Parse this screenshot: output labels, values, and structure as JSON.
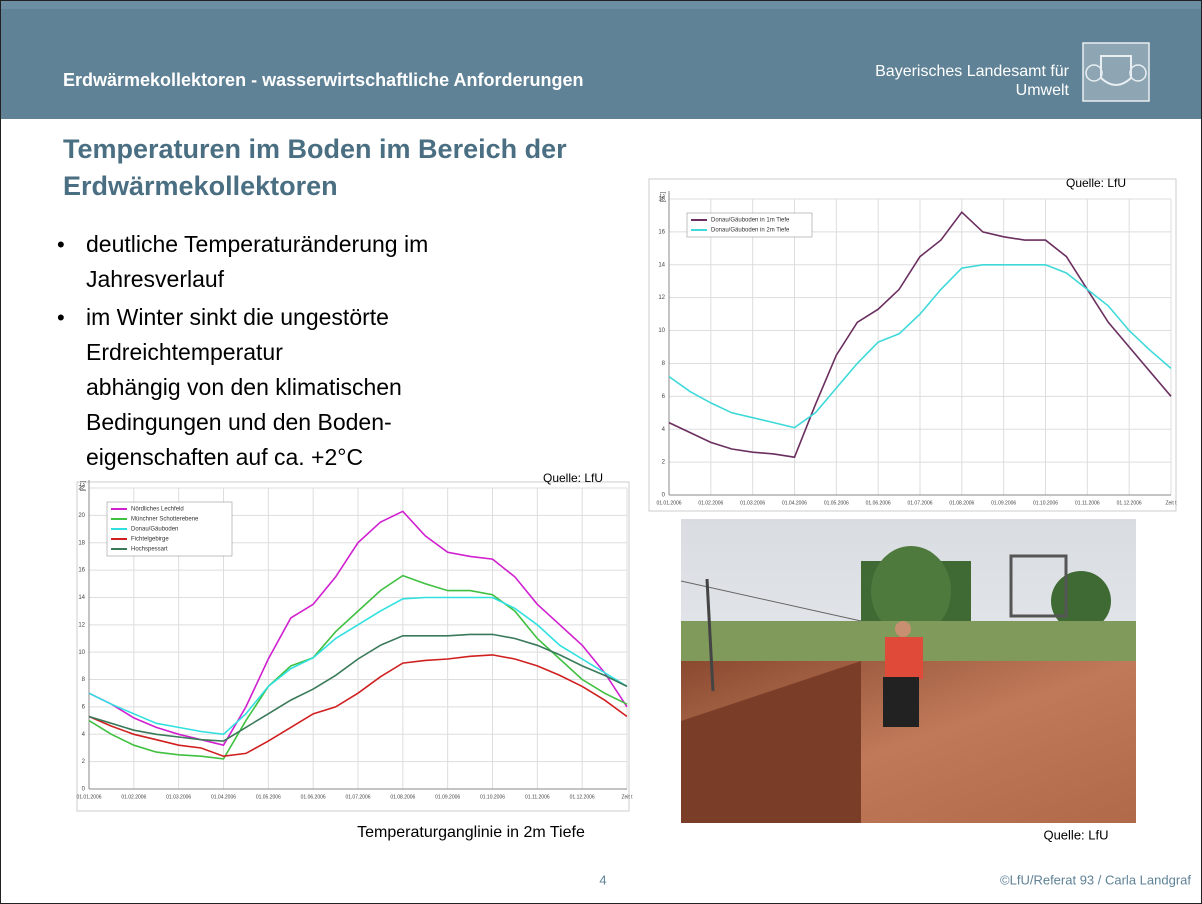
{
  "header": {
    "title": "Erdwärmekollektoren - wasserwirtschaftliche Anforderungen",
    "org_lines": [
      "Bayerisches Landesamt für",
      "Umwelt"
    ]
  },
  "slide_title": [
    "Temperaturen im Boden im Bereich der",
    "Erdwärmekollektoren"
  ],
  "bullets": [
    [
      "deutliche Temperaturänderung im",
      "Jahresverlauf"
    ],
    [
      "im Winter sinkt die ungestörte",
      "Erdreichtemperatur",
      "abhängig von den klimatischen",
      "Bedingungen und den Boden-",
      "eigenschaften auf ca. +2°C"
    ]
  ],
  "chart_data": [
    {
      "type": "line",
      "source": "Quelle: LfU",
      "ylabel": "[°C]",
      "categories": [
        "01.01.2006",
        null,
        "01.02.2006",
        null,
        "01.03.2006",
        null,
        "01.04.2006",
        null,
        "01.05.2006",
        null,
        "01.06.2006",
        null,
        "01.07.2006",
        null,
        "01.08.2006",
        null,
        "01.09.2006",
        null,
        "01.10.2006",
        null,
        "01.11.2006",
        null,
        "01.12.2006",
        null,
        "Zeit t"
      ],
      "ylim": [
        0,
        18
      ],
      "yticks": [
        0,
        2,
        4,
        6,
        8,
        10,
        12,
        14,
        16,
        18
      ],
      "grid": true,
      "legend": "upper left",
      "series": [
        {
          "name": "Donau/Gäuboden in 1m Tiefe",
          "color": "#6b2f5f",
          "values": [
            4.4,
            3.8,
            3.2,
            2.8,
            2.6,
            2.5,
            2.3,
            5.5,
            8.5,
            10.5,
            11.3,
            12.5,
            14.5,
            15.5,
            17.2,
            16,
            15.7,
            15.5,
            15.5,
            14.5,
            12.5,
            10.5,
            9,
            7.5,
            6
          ]
        },
        {
          "name": "Donau/Gäuboden in 2m Tiefe",
          "color": "#3fd9d9",
          "values": [
            7.2,
            6.3,
            5.6,
            5.0,
            4.7,
            4.4,
            4.1,
            5,
            6.5,
            8,
            9.3,
            9.8,
            11,
            12.5,
            13.8,
            14,
            14,
            14,
            14,
            13.5,
            12.5,
            11.5,
            10,
            8.8,
            7.7
          ]
        }
      ]
    },
    {
      "type": "line",
      "source": "Quelle: LfU",
      "ylabel": "[°C]",
      "caption": "Temperaturganglinie in 2m Tiefe",
      "categories": [
        "01.01.2006",
        null,
        "01.02.2006",
        null,
        "01.03.2006",
        null,
        "01.04.2006",
        null,
        "01.05.2006",
        null,
        "01.06.2006",
        null,
        "01.07.2006",
        null,
        "01.08.2006",
        null,
        "01.09.2006",
        null,
        "01.10.2006",
        null,
        "01.11.2006",
        null,
        "01.12.2006",
        null,
        "Zeit t"
      ],
      "ylim": [
        0,
        22
      ],
      "yticks": [
        0,
        2,
        4,
        6,
        8,
        10,
        12,
        14,
        16,
        18,
        20,
        22
      ],
      "grid": true,
      "legend": "upper left",
      "series": [
        {
          "name": "Nördliches Lechfeld",
          "color": "#d020d0",
          "values": [
            7,
            6.2,
            5.2,
            4.5,
            4,
            3.6,
            3.2,
            6,
            9.5,
            12.5,
            13.5,
            15.5,
            18,
            19.5,
            20.3,
            18.5,
            17.3,
            17,
            16.8,
            15.5,
            13.5,
            12,
            10.5,
            8.5,
            6
          ]
        },
        {
          "name": "Münchner Schotterebene",
          "color": "#40c040",
          "values": [
            5,
            4,
            3.2,
            2.7,
            2.5,
            2.4,
            2.2,
            5,
            7.5,
            9,
            9.6,
            11.5,
            13,
            14.5,
            15.6,
            15,
            14.5,
            14.5,
            14.2,
            13,
            11,
            9.5,
            8,
            7,
            6.2
          ]
        },
        {
          "name": "Donau/Gäuboden",
          "color": "#30e0e0",
          "values": [
            7,
            6.2,
            5.5,
            4.8,
            4.5,
            4.2,
            4,
            5.5,
            7.5,
            8.8,
            9.6,
            11,
            12,
            13,
            13.9,
            14,
            14,
            14,
            14,
            13.2,
            12,
            10.5,
            9.5,
            8.5,
            7.5
          ]
        },
        {
          "name": "Fichtelgebirge",
          "color": "#d02020",
          "values": [
            5.3,
            4.6,
            4,
            3.6,
            3.2,
            3,
            2.4,
            2.6,
            3.5,
            4.5,
            5.5,
            6,
            7,
            8.2,
            9.2,
            9.4,
            9.5,
            9.7,
            9.8,
            9.5,
            9,
            8.3,
            7.5,
            6.5,
            5.3
          ]
        },
        {
          "name": "Hochspessart",
          "color": "#3a7a5a",
          "values": [
            5.3,
            4.8,
            4.3,
            4,
            3.8,
            3.6,
            3.5,
            4.5,
            5.5,
            6.5,
            7.3,
            8.3,
            9.5,
            10.5,
            11.2,
            11.2,
            11.2,
            11.3,
            11.3,
            11,
            10.5,
            9.8,
            9,
            8.3,
            7.5
          ]
        }
      ]
    }
  ],
  "photo_source": "Quelle: LfU",
  "footer": {
    "page": "4",
    "credit": "©LfU/Referat 93 / Carla Landgraf"
  }
}
